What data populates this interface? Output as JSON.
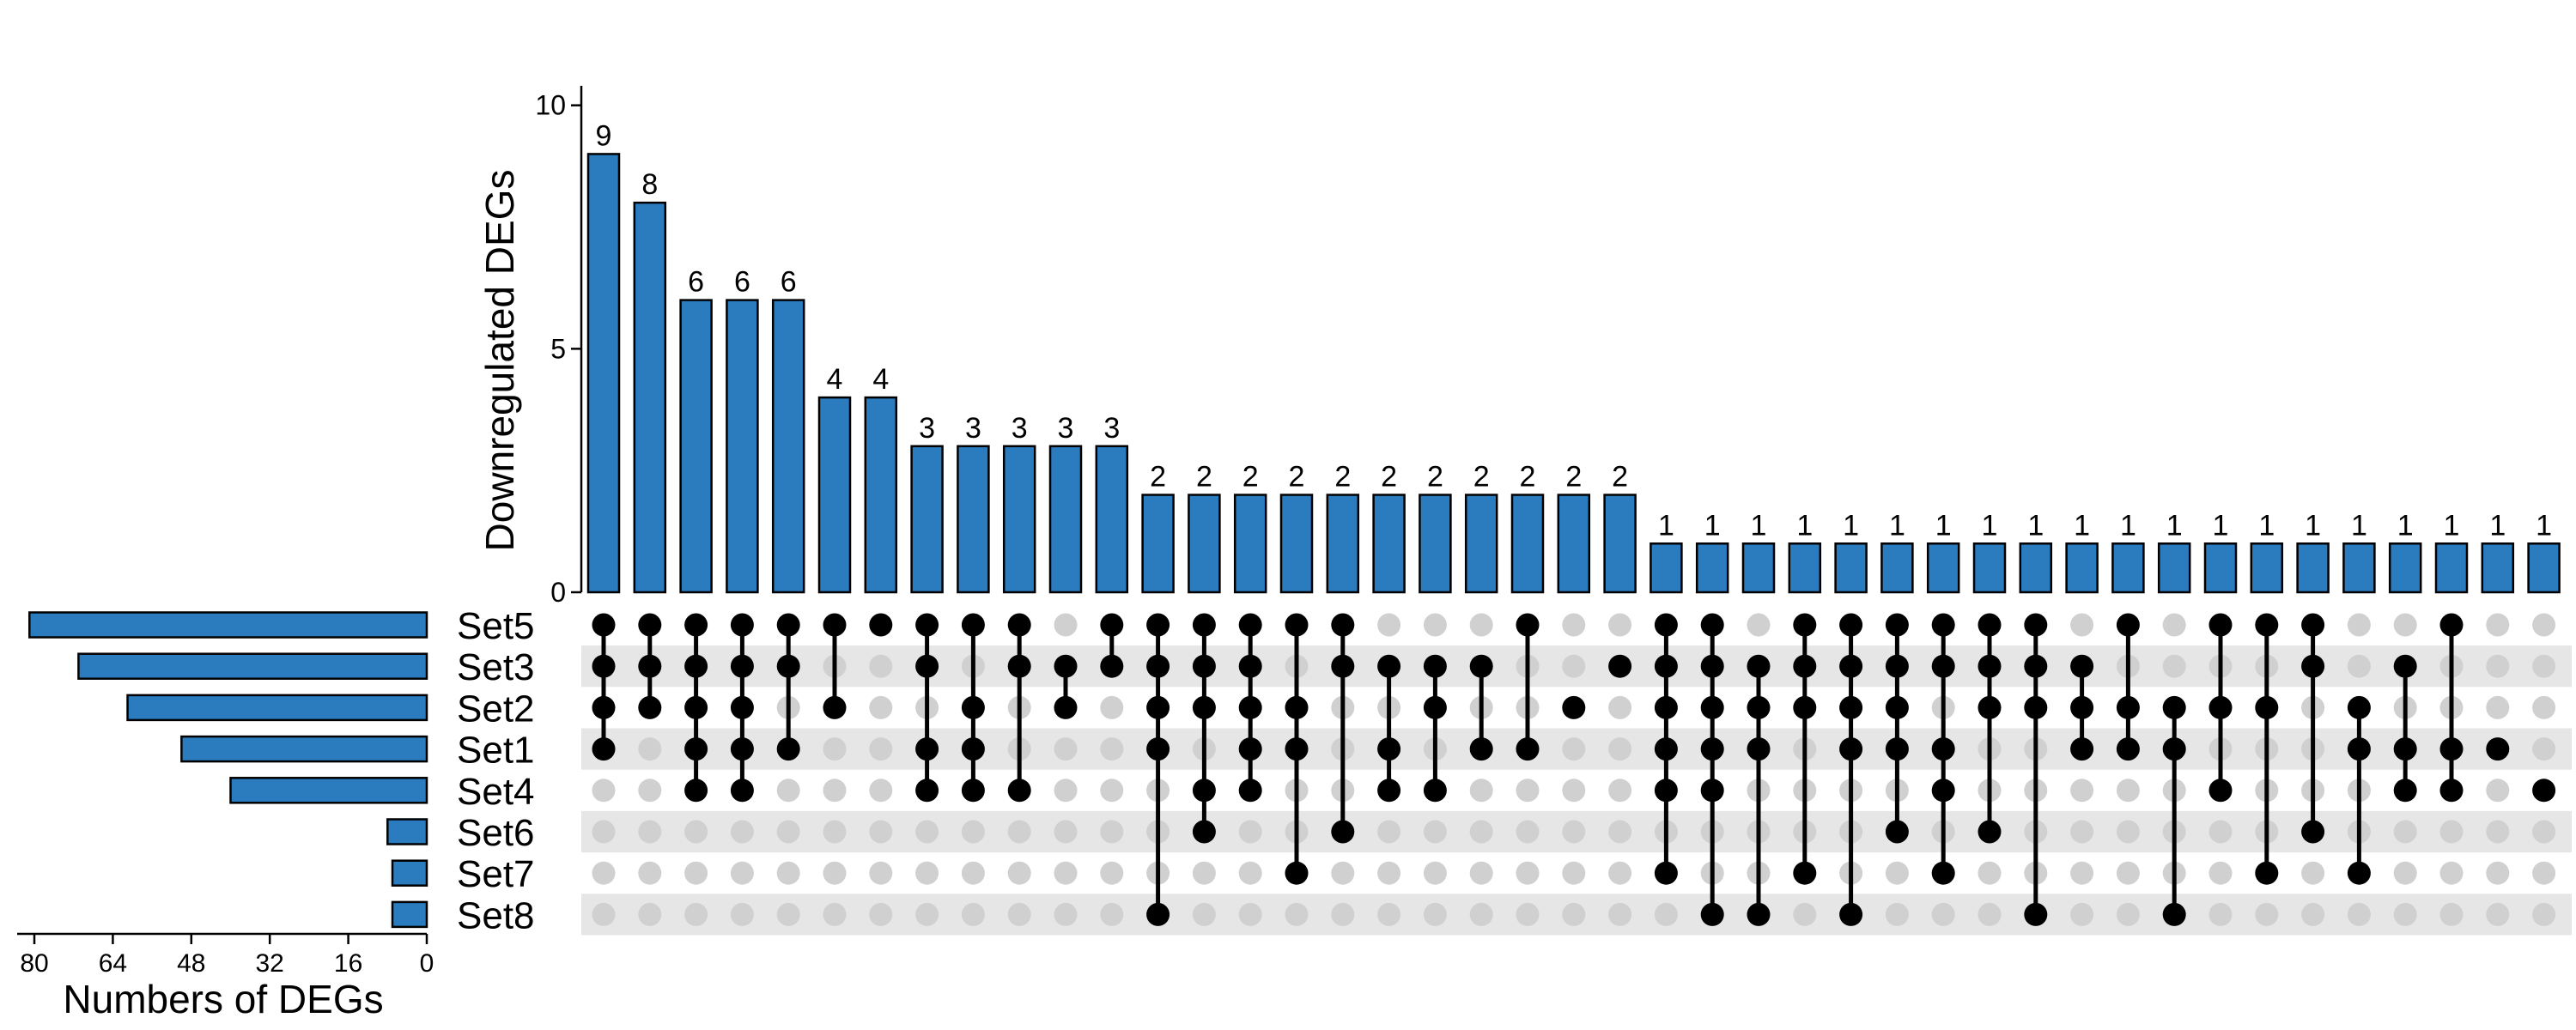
{
  "chart_data": {
    "type": "upset",
    "sets": [
      "Set5",
      "Set3",
      "Set2",
      "Set1",
      "Set4",
      "Set6",
      "Set7",
      "Set8"
    ],
    "set_sizes": [
      81,
      71,
      61,
      50,
      40,
      8,
      7,
      7
    ],
    "set_size_axis": {
      "label": "Numbers of DEGs",
      "ticks": [
        80,
        64,
        48,
        32,
        16,
        0
      ],
      "range": [
        86,
        0
      ]
    },
    "intersection_axis": {
      "label": "Downregulated DEGs",
      "ticks": [
        0,
        5,
        10
      ],
      "range": [
        0,
        10.4
      ]
    },
    "intersections": [
      {
        "sets": [
          "Set5",
          "Set3",
          "Set2",
          "Set1"
        ],
        "value": 9
      },
      {
        "sets": [
          "Set5",
          "Set3",
          "Set2"
        ],
        "value": 8
      },
      {
        "sets": [
          "Set5",
          "Set3",
          "Set2",
          "Set1",
          "Set4"
        ],
        "value": 6
      },
      {
        "sets": [
          "Set5",
          "Set3",
          "Set2",
          "Set1",
          "Set4"
        ],
        "value": 6
      },
      {
        "sets": [
          "Set5",
          "Set3",
          "Set1"
        ],
        "value": 6
      },
      {
        "sets": [
          "Set5",
          "Set2"
        ],
        "value": 4
      },
      {
        "sets": [
          "Set5"
        ],
        "value": 4
      },
      {
        "sets": [
          "Set5",
          "Set3",
          "Set1",
          "Set4"
        ],
        "value": 3
      },
      {
        "sets": [
          "Set5",
          "Set2",
          "Set1",
          "Set4"
        ],
        "value": 3
      },
      {
        "sets": [
          "Set5",
          "Set3",
          "Set4"
        ],
        "value": 3
      },
      {
        "sets": [
          "Set3",
          "Set2"
        ],
        "value": 3
      },
      {
        "sets": [
          "Set5",
          "Set3"
        ],
        "value": 3
      },
      {
        "sets": [
          "Set5",
          "Set3",
          "Set2",
          "Set1",
          "Set8"
        ],
        "value": 2
      },
      {
        "sets": [
          "Set5",
          "Set3",
          "Set2",
          "Set4",
          "Set6"
        ],
        "value": 2
      },
      {
        "sets": [
          "Set5",
          "Set3",
          "Set2",
          "Set1",
          "Set4"
        ],
        "value": 2
      },
      {
        "sets": [
          "Set5",
          "Set2",
          "Set1",
          "Set7"
        ],
        "value": 2
      },
      {
        "sets": [
          "Set5",
          "Set3",
          "Set6"
        ],
        "value": 2
      },
      {
        "sets": [
          "Set3",
          "Set1",
          "Set4"
        ],
        "value": 2
      },
      {
        "sets": [
          "Set3",
          "Set2",
          "Set4"
        ],
        "value": 2
      },
      {
        "sets": [
          "Set3",
          "Set1"
        ],
        "value": 2
      },
      {
        "sets": [
          "Set5",
          "Set1"
        ],
        "value": 2
      },
      {
        "sets": [
          "Set2"
        ],
        "value": 2
      },
      {
        "sets": [
          "Set3"
        ],
        "value": 2
      },
      {
        "sets": [
          "Set5",
          "Set3",
          "Set2",
          "Set1",
          "Set4",
          "Set7"
        ],
        "value": 1
      },
      {
        "sets": [
          "Set5",
          "Set3",
          "Set2",
          "Set1",
          "Set4",
          "Set8"
        ],
        "value": 1
      },
      {
        "sets": [
          "Set3",
          "Set2",
          "Set1",
          "Set8"
        ],
        "value": 1
      },
      {
        "sets": [
          "Set5",
          "Set3",
          "Set2",
          "Set7"
        ],
        "value": 1
      },
      {
        "sets": [
          "Set5",
          "Set3",
          "Set2",
          "Set1",
          "Set8"
        ],
        "value": 1
      },
      {
        "sets": [
          "Set5",
          "Set3",
          "Set2",
          "Set1",
          "Set6"
        ],
        "value": 1
      },
      {
        "sets": [
          "Set5",
          "Set3",
          "Set1",
          "Set4",
          "Set7"
        ],
        "value": 1
      },
      {
        "sets": [
          "Set5",
          "Set3",
          "Set2",
          "Set6"
        ],
        "value": 1
      },
      {
        "sets": [
          "Set5",
          "Set3",
          "Set2",
          "Set8"
        ],
        "value": 1
      },
      {
        "sets": [
          "Set3",
          "Set2",
          "Set1"
        ],
        "value": 1
      },
      {
        "sets": [
          "Set5",
          "Set2",
          "Set1"
        ],
        "value": 1
      },
      {
        "sets": [
          "Set2",
          "Set1",
          "Set8"
        ],
        "value": 1
      },
      {
        "sets": [
          "Set5",
          "Set2",
          "Set4"
        ],
        "value": 1
      },
      {
        "sets": [
          "Set5",
          "Set2",
          "Set7"
        ],
        "value": 1
      },
      {
        "sets": [
          "Set5",
          "Set3",
          "Set6"
        ],
        "value": 1
      },
      {
        "sets": [
          "Set2",
          "Set1",
          "Set7"
        ],
        "value": 1
      },
      {
        "sets": [
          "Set3",
          "Set1",
          "Set4"
        ],
        "value": 1
      },
      {
        "sets": [
          "Set5",
          "Set1",
          "Set4"
        ],
        "value": 1
      },
      {
        "sets": [
          "Set1"
        ],
        "value": 1
      },
      {
        "sets": [
          "Set4"
        ],
        "value": 1
      }
    ],
    "grid": false,
    "colors": {
      "bar": "#2b7bbf",
      "dot_active": "#000000",
      "dot_inactive": "#d0d0d0",
      "stripe": "#e6e6e6"
    }
  }
}
